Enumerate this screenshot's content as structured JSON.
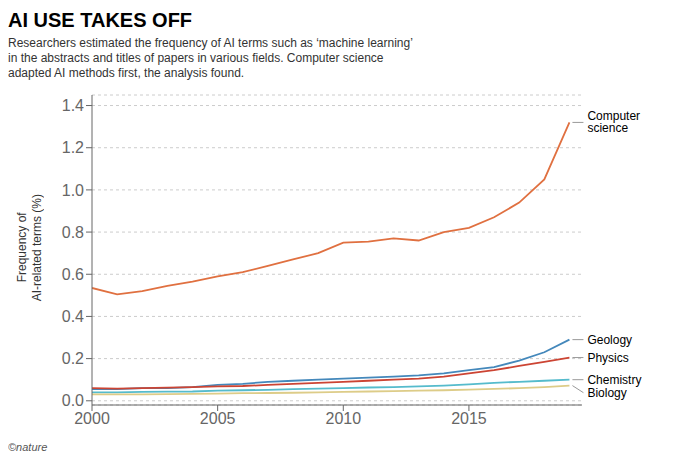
{
  "chart_data": {
    "type": "line",
    "title": "AI USE TAKES OFF",
    "subtitle": "Researchers estimated the frequency of AI terms such as ‘machine learning’\nin the abstracts and titles of papers in various fields. Computer science\nadapted AI methods first, the analysis found.",
    "ylabel": "Frequency of\nAI-related terms (%)",
    "footer": "©nature",
    "x": [
      2000,
      2001,
      2002,
      2003,
      2004,
      2005,
      2006,
      2007,
      2008,
      2009,
      2010,
      2011,
      2012,
      2013,
      2014,
      2015,
      2016,
      2017,
      2018,
      2019
    ],
    "xlim": [
      2000,
      2019.5
    ],
    "xticks": [
      2000,
      2005,
      2010,
      2015
    ],
    "ylim": [
      -0.02,
      1.45
    ],
    "yticks": [
      {
        "value": 0,
        "label": "0.0"
      },
      0.2,
      0.4,
      0.6,
      0.8,
      {
        "value": 1,
        "label": "1.0"
      },
      1.2,
      1.4
    ],
    "grid": true,
    "series": [
      {
        "name": "Computer\nscience",
        "color": "#e07040",
        "values": [
          0.535,
          0.505,
          0.52,
          0.545,
          0.565,
          0.59,
          0.61,
          0.64,
          0.67,
          0.7,
          0.75,
          0.755,
          0.77,
          0.76,
          0.8,
          0.82,
          0.87,
          0.94,
          1.05,
          1.32
        ]
      },
      {
        "name": "Geology",
        "color": "#4488bb",
        "values": [
          0.055,
          0.055,
          0.06,
          0.06,
          0.065,
          0.075,
          0.08,
          0.09,
          0.095,
          0.1,
          0.105,
          0.11,
          0.115,
          0.12,
          0.13,
          0.145,
          0.16,
          0.19,
          0.23,
          0.29
        ]
      },
      {
        "name": "Physics",
        "color": "#cc4433",
        "values": [
          0.06,
          0.058,
          0.06,
          0.062,
          0.065,
          0.068,
          0.07,
          0.075,
          0.08,
          0.085,
          0.09,
          0.095,
          0.1,
          0.105,
          0.115,
          0.13,
          0.145,
          0.165,
          0.185,
          0.205
        ]
      },
      {
        "name": "Chemistry",
        "color": "#55bbcc",
        "values": [
          0.04,
          0.04,
          0.042,
          0.043,
          0.044,
          0.048,
          0.05,
          0.052,
          0.055,
          0.058,
          0.06,
          0.063,
          0.065,
          0.068,
          0.072,
          0.078,
          0.085,
          0.09,
          0.095,
          0.1
        ]
      },
      {
        "name": "Biology",
        "color": "#ddcc88",
        "values": [
          0.03,
          0.03,
          0.03,
          0.032,
          0.033,
          0.034,
          0.036,
          0.037,
          0.038,
          0.04,
          0.042,
          0.044,
          0.046,
          0.048,
          0.05,
          0.053,
          0.056,
          0.06,
          0.065,
          0.072
        ]
      }
    ]
  }
}
